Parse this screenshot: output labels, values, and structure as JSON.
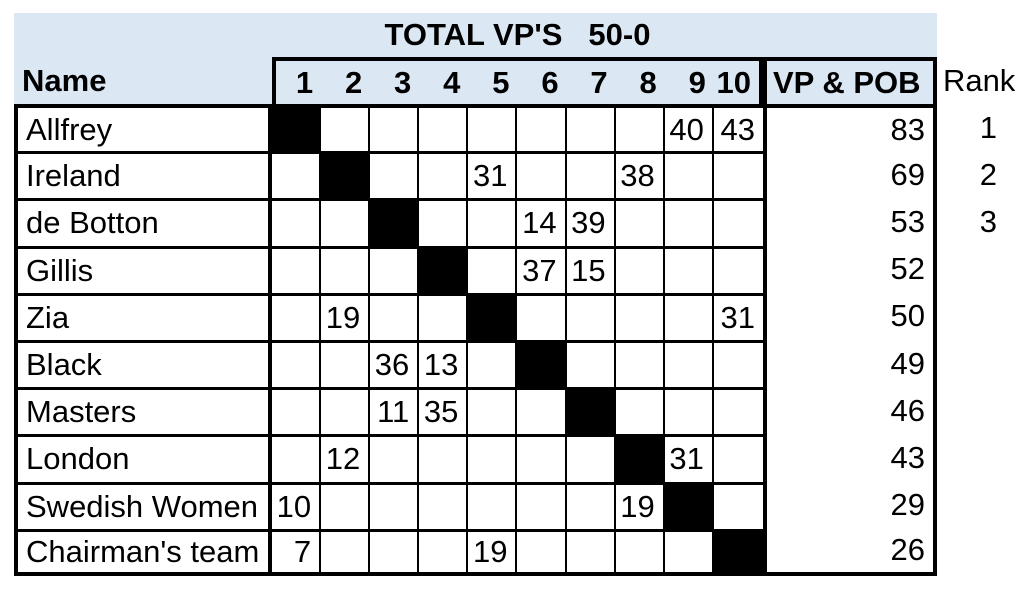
{
  "title": {
    "label": "TOTAL VP'S",
    "range": "50-0"
  },
  "header": {
    "name": "Name",
    "rounds": [
      "1",
      "2",
      "3",
      "4",
      "5",
      "6",
      "7",
      "8",
      "9",
      "10"
    ],
    "vp_pob": "VP & POB",
    "rank": "Rank"
  },
  "rows": [
    {
      "name": "Allfrey",
      "self_col": 1,
      "scores": {
        "9": "40",
        "10": "43"
      },
      "vp": "83",
      "rank": "1"
    },
    {
      "name": "Ireland",
      "self_col": 2,
      "scores": {
        "5": "31",
        "8": "38"
      },
      "vp": "69",
      "rank": "2"
    },
    {
      "name": "de Botton",
      "self_col": 3,
      "scores": {
        "6": "14",
        "7": "39"
      },
      "vp": "53",
      "rank": "3"
    },
    {
      "name": "Gillis",
      "self_col": 4,
      "scores": {
        "6": "37",
        "7": "15"
      },
      "vp": "52"
    },
    {
      "name": "Zia",
      "self_col": 5,
      "scores": {
        "2": "19",
        "10": "31"
      },
      "vp": "50"
    },
    {
      "name": "Black",
      "self_col": 6,
      "scores": {
        "3": "36",
        "4": "13"
      },
      "vp": "49"
    },
    {
      "name": "Masters",
      "self_col": 7,
      "scores": {
        "3": "11",
        "4": "35"
      },
      "vp": "46"
    },
    {
      "name": "London",
      "self_col": 8,
      "scores": {
        "2": "12",
        "9": "31"
      },
      "vp": "43"
    },
    {
      "name": "Swedish Women",
      "self_col": 9,
      "scores": {
        "1": "10",
        "8": "19"
      },
      "vp": "29"
    },
    {
      "name": "Chairman's team",
      "self_col": 10,
      "scores": {
        "1": "7",
        "5": "19"
      },
      "vp": "26"
    }
  ],
  "colors": {
    "header_bg": "#dbe7f3",
    "self_cell": "#000000",
    "border": "#000000"
  }
}
